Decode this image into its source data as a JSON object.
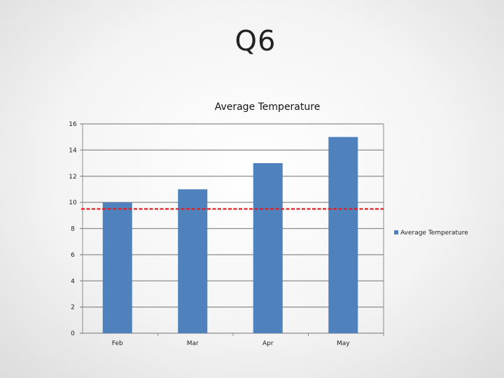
{
  "slide": {
    "title": "Q6"
  },
  "chart_data": {
    "type": "bar",
    "title": "Average Temperature",
    "categories": [
      "Feb",
      "Mar",
      "Apr",
      "May"
    ],
    "series": [
      {
        "name": "Average Temperature",
        "values": [
          10,
          11,
          13,
          15
        ],
        "color": "#4f81bd"
      }
    ],
    "ylim": [
      0,
      16
    ],
    "yticks": [
      0,
      2,
      4,
      6,
      8,
      10,
      12,
      14,
      16
    ],
    "grid": true,
    "legend": "right",
    "reference_line": {
      "value": 9.5,
      "color": "#e02020",
      "style": "dashed"
    }
  }
}
